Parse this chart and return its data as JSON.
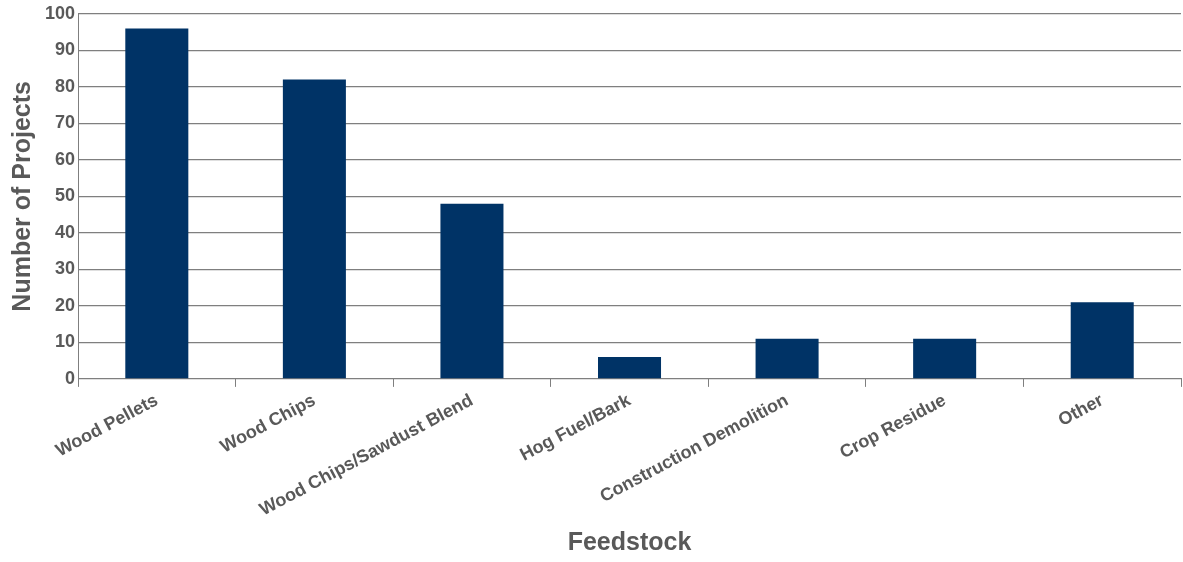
{
  "chart_data": {
    "type": "bar",
    "xlabel": "Feedstock",
    "ylabel": "Number of Projects",
    "categories": [
      "Wood Pellets",
      "Wood Chips",
      "Wood Chips/Sawdust Blend",
      "Hog Fuel/Bark",
      "Construction Demolition",
      "Crop Residue",
      "Other"
    ],
    "values": [
      96,
      82,
      48,
      6,
      11,
      11,
      21
    ],
    "color": "#003366",
    "ylim": [
      0,
      100
    ],
    "yticks": [
      0,
      10,
      20,
      30,
      40,
      50,
      60,
      70,
      80,
      90,
      100
    ],
    "grid": "y",
    "legend": false
  }
}
